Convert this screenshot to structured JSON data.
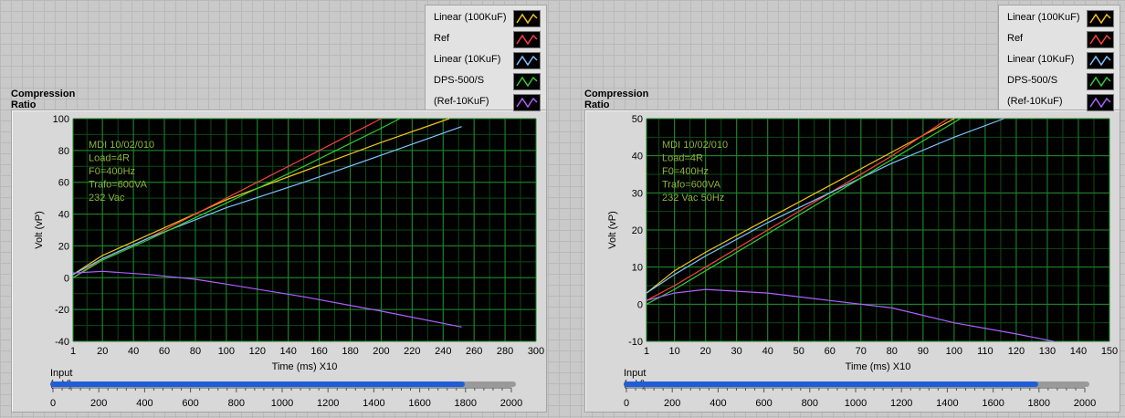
{
  "panels": [
    {
      "title": "Compression Ratio",
      "legend": [
        {
          "name": "Linear (100KuF)",
          "color": "#f5c518"
        },
        {
          "name": "Ref",
          "color": "#ff4040"
        },
        {
          "name": "Linear (10KuF)",
          "color": "#7ec3ff"
        },
        {
          "name": "DPS-500/S",
          "color": "#33cc33"
        },
        {
          "name": "(Ref-10KuF)",
          "color": "#b060ff"
        }
      ],
      "slider": {
        "label": "Input (mV)",
        "value": 1780,
        "min": 0,
        "max": 2000,
        "ticks": [
          "0",
          "200",
          "400",
          "600",
          "800",
          "1000",
          "1200",
          "1400",
          "1600",
          "1800",
          "2000"
        ]
      },
      "chart_data": {
        "type": "line",
        "xlabel": "Time (ms) X10",
        "ylabel": "Volt (vP)",
        "xlim": [
          1,
          300
        ],
        "ylim": [
          -40,
          100
        ],
        "xticks": [
          "1",
          "20",
          "40",
          "60",
          "80",
          "100",
          "120",
          "140",
          "160",
          "180",
          "200",
          "220",
          "240",
          "260",
          "280",
          "300"
        ],
        "xtick_values": [
          1,
          20,
          40,
          60,
          80,
          100,
          120,
          140,
          160,
          180,
          200,
          220,
          240,
          260,
          280,
          300
        ],
        "yticks": [
          "100",
          "80",
          "60",
          "40",
          "20",
          "0",
          "-20",
          "-40"
        ],
        "ytick_values": [
          100,
          80,
          60,
          40,
          20,
          0,
          -20,
          -40
        ],
        "grid": true,
        "annotation": [
          "MDI 10/02/010",
          "Load=4R",
          "F0=400Hz",
          "Trafo=600VA",
          "232 Vac"
        ],
        "series": [
          {
            "name": "Linear (100KuF)",
            "color": "#f5c518",
            "x": [
              1,
              20,
              50,
              100,
              150,
              200,
              244
            ],
            "y": [
              2,
              14,
              27,
              49,
              67,
              85,
              100
            ]
          },
          {
            "name": "Ref",
            "color": "#ff4040",
            "x": [
              1,
              20,
              50,
              100,
              150,
              200
            ],
            "y": [
              0,
              12,
              25,
              50,
              75,
              100
            ]
          },
          {
            "name": "Linear (10KuF)",
            "color": "#7ec3ff",
            "x": [
              1,
              20,
              50,
              100,
              150,
              200,
              252
            ],
            "y": [
              2,
              12,
              25,
              44,
              60,
              77,
              95
            ]
          },
          {
            "name": "DPS-500/S",
            "color": "#33cc33",
            "x": [
              1,
              20,
              50,
              100,
              150,
              200,
              212
            ],
            "y": [
              0,
              11,
              24,
              47,
              70,
              94,
              100
            ]
          },
          {
            "name": "(Ref-10KuF)",
            "color": "#b060ff",
            "x": [
              1,
              20,
              50,
              80,
              100,
              150,
              200,
              252
            ],
            "y": [
              3,
              4,
              2,
              -1,
              -4,
              -12,
              -21,
              -31
            ]
          }
        ]
      }
    },
    {
      "title": "Compression Ratio",
      "legend": [
        {
          "name": "Linear (100KuF)",
          "color": "#f5c518"
        },
        {
          "name": "Ref",
          "color": "#ff4040"
        },
        {
          "name": "Linear (10KuF)",
          "color": "#7ec3ff"
        },
        {
          "name": "DPS-500/S",
          "color": "#33cc33"
        },
        {
          "name": "(Ref-10KuF)",
          "color": "#b060ff"
        }
      ],
      "slider": {
        "label": "Input (mV)",
        "value": 1780,
        "min": 0,
        "max": 2000,
        "ticks": [
          "0",
          "200",
          "400",
          "600",
          "800",
          "1000",
          "1200",
          "1400",
          "1600",
          "1800",
          "2000"
        ]
      },
      "chart_data": {
        "type": "line",
        "xlabel": "Time (ms) X10",
        "ylabel": "Volt (vP)",
        "xlim": [
          1,
          150
        ],
        "ylim": [
          -10,
          50
        ],
        "xticks": [
          "1",
          "10",
          "20",
          "30",
          "40",
          "50",
          "60",
          "70",
          "80",
          "90",
          "100",
          "110",
          "120",
          "130",
          "140",
          "150"
        ],
        "xtick_values": [
          1,
          10,
          20,
          30,
          40,
          50,
          60,
          70,
          80,
          90,
          100,
          110,
          120,
          130,
          140,
          150
        ],
        "yticks": [
          "50",
          "40",
          "30",
          "20",
          "10",
          "0",
          "-10"
        ],
        "ytick_values": [
          50,
          40,
          30,
          20,
          10,
          0,
          -10
        ],
        "grid": true,
        "annotation": [
          "MDI 10/02/010",
          "Load=4R",
          "F0=400Hz",
          "Trafo=600VA",
          "232 Vac 50Hz"
        ],
        "series": [
          {
            "name": "Linear (100KuF)",
            "color": "#f5c518",
            "x": [
              1,
              10,
              20,
              40,
              60,
              80,
              100
            ],
            "y": [
              3,
              9,
              14,
              23,
              32,
              41,
              50
            ]
          },
          {
            "name": "Ref",
            "color": "#ff4040",
            "x": [
              1,
              10,
              20,
              40,
              60,
              80,
              98
            ],
            "y": [
              1,
              5,
              10,
              20,
              30,
              40,
              50
            ]
          },
          {
            "name": "Linear (10KuF)",
            "color": "#7ec3ff",
            "x": [
              1,
              10,
              20,
              40,
              60,
              80,
              100,
              116
            ],
            "y": [
              3,
              8,
              13,
              22,
              30,
              38,
              45,
              50
            ]
          },
          {
            "name": "DPS-500/S",
            "color": "#33cc33",
            "x": [
              1,
              10,
              20,
              40,
              60,
              80,
              102
            ],
            "y": [
              0,
              4,
              9,
              19,
              29,
              39,
              50
            ]
          },
          {
            "name": "(Ref-10KuF)",
            "color": "#b060ff",
            "x": [
              1,
              10,
              20,
              40,
              60,
              80,
              100,
              120,
              132
            ],
            "y": [
              1,
              3,
              4,
              3,
              1,
              -1,
              -5,
              -8,
              -10
            ]
          }
        ]
      }
    }
  ]
}
